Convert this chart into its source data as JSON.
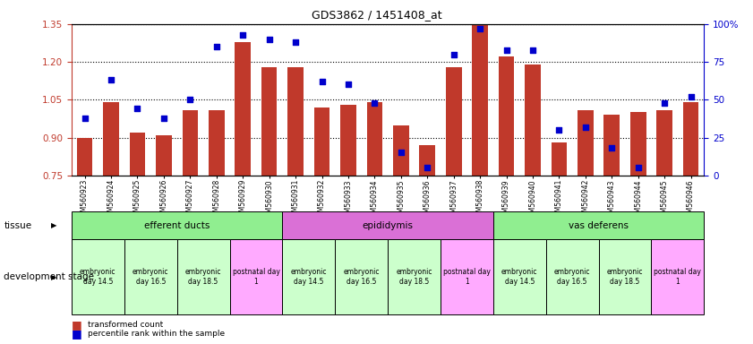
{
  "title": "GDS3862 / 1451408_at",
  "samples": [
    "GSM560923",
    "GSM560924",
    "GSM560925",
    "GSM560926",
    "GSM560927",
    "GSM560928",
    "GSM560929",
    "GSM560930",
    "GSM560931",
    "GSM560932",
    "GSM560933",
    "GSM560934",
    "GSM560935",
    "GSM560936",
    "GSM560937",
    "GSM560938",
    "GSM560939",
    "GSM560940",
    "GSM560941",
    "GSM560942",
    "GSM560943",
    "GSM560944",
    "GSM560945",
    "GSM560946"
  ],
  "bar_values": [
    0.9,
    1.04,
    0.92,
    0.91,
    1.01,
    1.01,
    1.28,
    1.18,
    1.18,
    1.02,
    1.03,
    1.04,
    0.95,
    0.87,
    1.18,
    1.38,
    1.22,
    1.19,
    0.88,
    1.01,
    0.99,
    1.0,
    1.01,
    1.04
  ],
  "dot_values": [
    38,
    63,
    44,
    38,
    50,
    85,
    93,
    90,
    88,
    62,
    60,
    48,
    15,
    5,
    80,
    97,
    83,
    83,
    30,
    32,
    18,
    5,
    48,
    52
  ],
  "bar_color": "#c0392b",
  "dot_color": "#0000cc",
  "bar_bottom": 0.75,
  "ylim_left": [
    0.75,
    1.35
  ],
  "ylim_right": [
    0,
    100
  ],
  "yticks_left": [
    0.75,
    0.9,
    1.05,
    1.2,
    1.35
  ],
  "yticks_right": [
    0,
    25,
    50,
    75,
    100
  ],
  "tissue_groups": [
    {
      "label": "efferent ducts",
      "start": 0,
      "end": 8,
      "color": "#90ee90"
    },
    {
      "label": "epididymis",
      "start": 8,
      "end": 16,
      "color": "#da70d6"
    },
    {
      "label": "vas deferens",
      "start": 16,
      "end": 24,
      "color": "#90ee90"
    }
  ],
  "dev_stage_groups": [
    {
      "label": "embryonic\nday 14.5",
      "start": 0,
      "end": 2,
      "color": "#ccffcc"
    },
    {
      "label": "embryonic\nday 16.5",
      "start": 2,
      "end": 4,
      "color": "#ccffcc"
    },
    {
      "label": "embryonic\nday 18.5",
      "start": 4,
      "end": 6,
      "color": "#ccffcc"
    },
    {
      "label": "postnatal day\n1",
      "start": 6,
      "end": 8,
      "color": "#ffaaff"
    },
    {
      "label": "embryonic\nday 14.5",
      "start": 8,
      "end": 10,
      "color": "#ccffcc"
    },
    {
      "label": "embryonic\nday 16.5",
      "start": 10,
      "end": 12,
      "color": "#ccffcc"
    },
    {
      "label": "embryonic\nday 18.5",
      "start": 12,
      "end": 14,
      "color": "#ccffcc"
    },
    {
      "label": "postnatal day\n1",
      "start": 14,
      "end": 16,
      "color": "#ffaaff"
    },
    {
      "label": "embryonic\nday 14.5",
      "start": 16,
      "end": 18,
      "color": "#ccffcc"
    },
    {
      "label": "embryonic\nday 16.5",
      "start": 18,
      "end": 20,
      "color": "#ccffcc"
    },
    {
      "label": "embryonic\nday 18.5",
      "start": 20,
      "end": 22,
      "color": "#ccffcc"
    },
    {
      "label": "postnatal day\n1",
      "start": 22,
      "end": 24,
      "color": "#ffaaff"
    }
  ],
  "legend_bar_label": "transformed count",
  "legend_dot_label": "percentile rank within the sample",
  "tissue_label": "tissue",
  "dev_stage_label": "development stage",
  "bg_color": "#ffffff"
}
